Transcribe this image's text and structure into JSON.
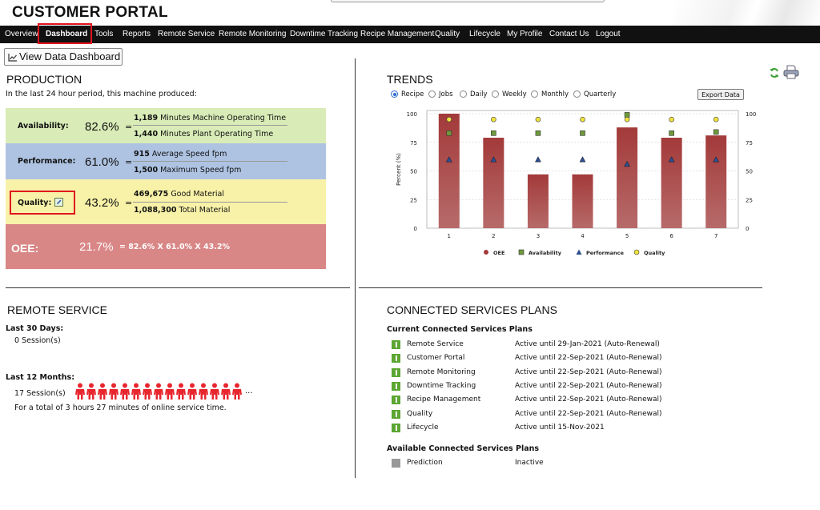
{
  "app": {
    "title": "CUSTOMER PORTAL"
  },
  "nav": [
    {
      "label": "Overview",
      "active": false
    },
    {
      "label": "Dashboard",
      "active": true
    },
    {
      "label": "Tools",
      "active": false
    },
    {
      "label": "Reports",
      "active": false
    },
    {
      "label": "Remote Service",
      "active": false
    },
    {
      "label": "Remote Monitoring",
      "active": false
    },
    {
      "label": "Downtime Tracking",
      "active": false
    },
    {
      "label": "Recipe Management",
      "active": false
    },
    {
      "label": "Quality",
      "active": false
    },
    {
      "label": "Lifecycle",
      "active": false
    },
    {
      "label": "My Profile",
      "active": false
    },
    {
      "label": "Contact Us",
      "active": false
    },
    {
      "label": "Logout",
      "active": false
    }
  ],
  "toolbar": {
    "view_dashboard_label": "View Data Dashboard"
  },
  "production": {
    "title": "PRODUCTION",
    "intro": "In the last 24 hour period, this machine produced:",
    "metrics": [
      {
        "label": "Availability:",
        "pct": "82.6%",
        "eq": "=",
        "top_value": "1,189",
        "top_text": "Minutes Machine Operating Time",
        "bottom_value": "1,440",
        "bottom_text": "Minutes Plant Operating Time",
        "color": "#d9ecb7"
      },
      {
        "label": "Performance:",
        "pct": "61.0%",
        "eq": "=",
        "top_value": "915",
        "top_text": "Average Speed fpm",
        "bottom_value": "1,500",
        "bottom_text": "Maximum Speed fpm",
        "color": "#aec3e2"
      },
      {
        "label": "Quality:",
        "pct": "43.2%",
        "eq": "=",
        "top_value": "469,675",
        "top_text": "Good Material",
        "bottom_value": "1,088,300",
        "bottom_text": "Total Material",
        "color": "#f8f2a8"
      }
    ],
    "oee": {
      "label": "OEE:",
      "pct": "21.7%",
      "formula": "= 82.6% X 61.0% X 43.2%",
      "color": "#d98686"
    }
  },
  "trends": {
    "title": "TRENDS",
    "options": [
      {
        "label": "Recipe",
        "selected": true
      },
      {
        "label": "Jobs",
        "selected": false
      },
      {
        "label": "Daily",
        "selected": false
      },
      {
        "label": "Weekly",
        "selected": false
      },
      {
        "label": "Monthly",
        "selected": false
      },
      {
        "label": "Quarterly",
        "selected": false
      }
    ],
    "export_label": "Export Data",
    "icons": {
      "refresh": "refresh-icon",
      "print": "print-icon"
    }
  },
  "chart_data": {
    "type": "bar",
    "categories": [
      "1",
      "2",
      "3",
      "4",
      "5",
      "6",
      "7"
    ],
    "series": [
      {
        "name": "OEE",
        "kind": "bar",
        "color": "#a33a3a",
        "values": [
          100,
          79,
          47,
          47,
          88,
          79,
          81
        ]
      },
      {
        "name": "Availability",
        "kind": "square",
        "color": "#6e9a3c",
        "values": [
          83,
          83,
          83,
          83,
          99,
          83,
          84
        ]
      },
      {
        "name": "Performance",
        "kind": "triangle",
        "color": "#2d4f8e",
        "values": [
          60,
          60,
          60,
          60,
          56,
          60,
          60
        ]
      },
      {
        "name": "Quality",
        "kind": "circle",
        "color": "#f0e23a",
        "values": [
          95,
          95,
          95,
          95,
          95,
          95,
          95
        ]
      }
    ],
    "ylabel": "Percent (%)",
    "yticks": [
      "0",
      "25",
      "50",
      "75",
      "100"
    ],
    "ylim": [
      0,
      100
    ],
    "grid": true,
    "legend": "bottom"
  },
  "remote_service": {
    "title": "REMOTE SERVICE",
    "last30_label": "Last 30 Days:",
    "last30_value": "0 Session(s)",
    "last12_label": "Last 12 Months:",
    "last12_value": "17 Session(s)",
    "session_icon_count": 15,
    "ellipsis": "...",
    "total_text": "For a total of 3 hours 27 minutes of online service time."
  },
  "plans": {
    "title": "CONNECTED SERVICES PLANS",
    "current_heading": "Current Connected Services Plans",
    "current": [
      {
        "name": "Remote Service",
        "status": "Active until 29-Jan-2021 (Auto-Renewal)"
      },
      {
        "name": "Customer Portal",
        "status": "Active until 22-Sep-2021 (Auto-Renewal)"
      },
      {
        "name": "Remote Monitoring",
        "status": "Active until 22-Sep-2021 (Auto-Renewal)"
      },
      {
        "name": "Downtime Tracking",
        "status": "Active until 22-Sep-2021 (Auto-Renewal)"
      },
      {
        "name": "Recipe Management",
        "status": "Active until 22-Sep-2021 (Auto-Renewal)"
      },
      {
        "name": "Quality",
        "status": "Active until 22-Sep-2021 (Auto-Renewal)"
      },
      {
        "name": "Lifecycle",
        "status": "Active until 15-Nov-2021"
      }
    ],
    "available_heading": "Available Connected Services Plans",
    "available": [
      {
        "name": "Prediction",
        "status": "Inactive"
      }
    ]
  }
}
